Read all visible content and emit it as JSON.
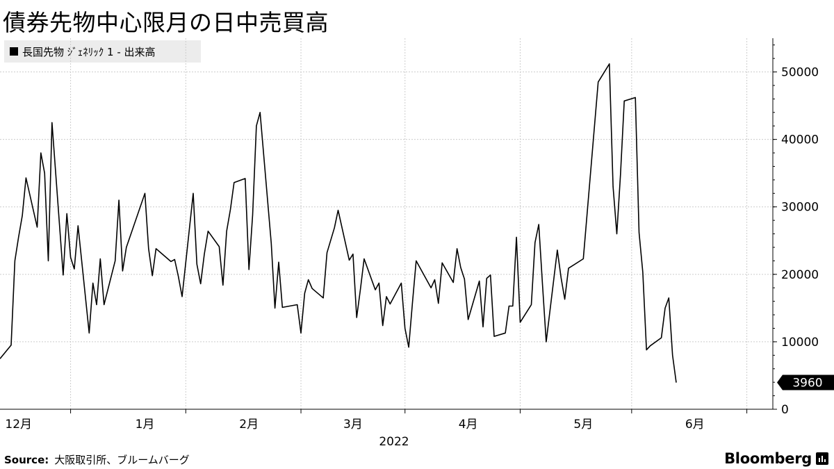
{
  "header": {
    "title": "債券先物中心限月の日中売買高"
  },
  "legend": {
    "label": "長国先物 ｼﾞｪﾈﾘｯｸ 1 - 出来高",
    "position": "top-left"
  },
  "footer": {
    "source_label": "Source:",
    "source_text": "大阪取引所、ブルームバーグ",
    "brand": "Bloomberg"
  },
  "colors": {
    "line": "#000000",
    "grid": "#cccccc",
    "legend_bg": "#ececec",
    "last_tag": "#000000"
  },
  "chart_data": {
    "type": "line",
    "title": "債券先物中心限月の日中売買高",
    "xlabel": "2022",
    "ylabel": "",
    "ylim": [
      0,
      55000
    ],
    "y_ticks": [
      0,
      10000,
      20000,
      30000,
      40000,
      50000
    ],
    "y_tick_labels": [
      "0",
      "10000",
      "20000",
      "30000",
      "40000",
      "50000"
    ],
    "grid": true,
    "last_value_label": "3960",
    "x_start": "2021-11-26",
    "x_end": "2022-06-22",
    "x_month_labels": [
      {
        "date": "2021-12-01",
        "label": "12月"
      },
      {
        "date": "2022-01-04",
        "label": "1月"
      },
      {
        "date": "2022-02-01",
        "label": "2月"
      },
      {
        "date": "2022-03-01",
        "label": "3月"
      },
      {
        "date": "2022-04-01",
        "label": "4月"
      },
      {
        "date": "2022-05-02",
        "label": "5月"
      },
      {
        "date": "2022-06-01",
        "label": "6月"
      }
    ],
    "x_minor_ticks": [
      "2021-12-15",
      "2022-01-15",
      "2022-02-15",
      "2022-03-15",
      "2022-04-15",
      "2022-05-15",
      "2022-06-15"
    ],
    "series": [
      {
        "name": "長国先物 ｼﾞｪﾈﾘｯｸ 1 - 出来高",
        "points": [
          [
            "2021-11-26",
            7500
          ],
          [
            "2021-11-29",
            9500
          ],
          [
            "2021-11-30",
            22000
          ],
          [
            "2021-12-01",
            25500
          ],
          [
            "2021-12-02",
            28700
          ],
          [
            "2021-12-03",
            34300
          ],
          [
            "2021-12-06",
            27000
          ],
          [
            "2021-12-07",
            38000
          ],
          [
            "2021-12-08",
            35000
          ],
          [
            "2021-12-09",
            22000
          ],
          [
            "2021-12-10",
            42500
          ],
          [
            "2021-12-13",
            19900
          ],
          [
            "2021-12-14",
            29000
          ],
          [
            "2021-12-15",
            22500
          ],
          [
            "2021-12-16",
            20800
          ],
          [
            "2021-12-17",
            27200
          ],
          [
            "2021-12-20",
            11300
          ],
          [
            "2021-12-21",
            18700
          ],
          [
            "2021-12-22",
            15500
          ],
          [
            "2021-12-23",
            22300
          ],
          [
            "2021-12-24",
            15500
          ],
          [
            "2021-12-27",
            22000
          ],
          [
            "2021-12-28",
            31000
          ],
          [
            "2021-12-29",
            20500
          ],
          [
            "2021-12-30",
            24000
          ],
          [
            "2022-01-04",
            32000
          ],
          [
            "2022-01-05",
            23800
          ],
          [
            "2022-01-06",
            19800
          ],
          [
            "2022-01-07",
            23800
          ],
          [
            "2022-01-11",
            21900
          ],
          [
            "2022-01-12",
            22200
          ],
          [
            "2022-01-13",
            19700
          ],
          [
            "2022-01-14",
            16700
          ],
          [
            "2022-01-17",
            32000
          ],
          [
            "2022-01-18",
            21500
          ],
          [
            "2022-01-19",
            18600
          ],
          [
            "2022-01-20",
            23000
          ],
          [
            "2022-01-21",
            26400
          ],
          [
            "2022-01-24",
            24100
          ],
          [
            "2022-01-25",
            18400
          ],
          [
            "2022-01-26",
            26400
          ],
          [
            "2022-01-27",
            29600
          ],
          [
            "2022-01-28",
            33600
          ],
          [
            "2022-01-31",
            34200
          ],
          [
            "2022-02-01",
            20700
          ],
          [
            "2022-02-02",
            28800
          ],
          [
            "2022-02-03",
            42000
          ],
          [
            "2022-02-04",
            44000
          ],
          [
            "2022-02-07",
            24600
          ],
          [
            "2022-02-08",
            15000
          ],
          [
            "2022-02-09",
            21800
          ],
          [
            "2022-02-10",
            15100
          ],
          [
            "2022-02-14",
            15500
          ],
          [
            "2022-02-15",
            11300
          ],
          [
            "2022-02-16",
            17200
          ],
          [
            "2022-02-17",
            19200
          ],
          [
            "2022-02-18",
            17900
          ],
          [
            "2022-02-21",
            16500
          ],
          [
            "2022-02-22",
            23200
          ],
          [
            "2022-02-24",
            26900
          ],
          [
            "2022-02-25",
            29500
          ],
          [
            "2022-02-28",
            22100
          ],
          [
            "2022-03-01",
            23000
          ],
          [
            "2022-03-02",
            13600
          ],
          [
            "2022-03-03",
            17800
          ],
          [
            "2022-03-04",
            22300
          ],
          [
            "2022-03-07",
            17700
          ],
          [
            "2022-03-08",
            18700
          ],
          [
            "2022-03-09",
            12400
          ],
          [
            "2022-03-10",
            16700
          ],
          [
            "2022-03-11",
            15600
          ],
          [
            "2022-03-14",
            18700
          ],
          [
            "2022-03-15",
            12000
          ],
          [
            "2022-03-16",
            9200
          ],
          [
            "2022-03-17",
            15700
          ],
          [
            "2022-03-18",
            22000
          ],
          [
            "2022-03-22",
            18000
          ],
          [
            "2022-03-23",
            19200
          ],
          [
            "2022-03-24",
            15700
          ],
          [
            "2022-03-25",
            21700
          ],
          [
            "2022-03-28",
            18800
          ],
          [
            "2022-03-29",
            23800
          ],
          [
            "2022-03-30",
            21000
          ],
          [
            "2022-03-31",
            19300
          ],
          [
            "2022-04-01",
            13300
          ],
          [
            "2022-04-04",
            19000
          ],
          [
            "2022-04-05",
            12200
          ],
          [
            "2022-04-06",
            19400
          ],
          [
            "2022-04-07",
            19900
          ],
          [
            "2022-04-08",
            10800
          ],
          [
            "2022-04-11",
            11300
          ],
          [
            "2022-04-12",
            15300
          ],
          [
            "2022-04-13",
            15300
          ],
          [
            "2022-04-14",
            25500
          ],
          [
            "2022-04-15",
            12900
          ],
          [
            "2022-04-18",
            15500
          ],
          [
            "2022-04-19",
            24700
          ],
          [
            "2022-04-20",
            27400
          ],
          [
            "2022-04-21",
            18600
          ],
          [
            "2022-04-22",
            10000
          ],
          [
            "2022-04-25",
            23600
          ],
          [
            "2022-04-26",
            19500
          ],
          [
            "2022-04-27",
            16300
          ],
          [
            "2022-04-28",
            20900
          ],
          [
            "2022-05-02",
            22300
          ],
          [
            "2022-05-06",
            48500
          ],
          [
            "2022-05-09",
            51200
          ],
          [
            "2022-05-10",
            33000
          ],
          [
            "2022-05-11",
            26000
          ],
          [
            "2022-05-12",
            34800
          ],
          [
            "2022-05-13",
            45700
          ],
          [
            "2022-05-16",
            46200
          ],
          [
            "2022-05-17",
            26200
          ],
          [
            "2022-05-18",
            20300
          ],
          [
            "2022-05-19",
            8800
          ],
          [
            "2022-05-20",
            9400
          ],
          [
            "2022-05-23",
            10600
          ],
          [
            "2022-05-24",
            15000
          ],
          [
            "2022-05-25",
            16500
          ],
          [
            "2022-05-26",
            8000
          ],
          [
            "2022-05-27",
            3960
          ]
        ]
      }
    ]
  }
}
